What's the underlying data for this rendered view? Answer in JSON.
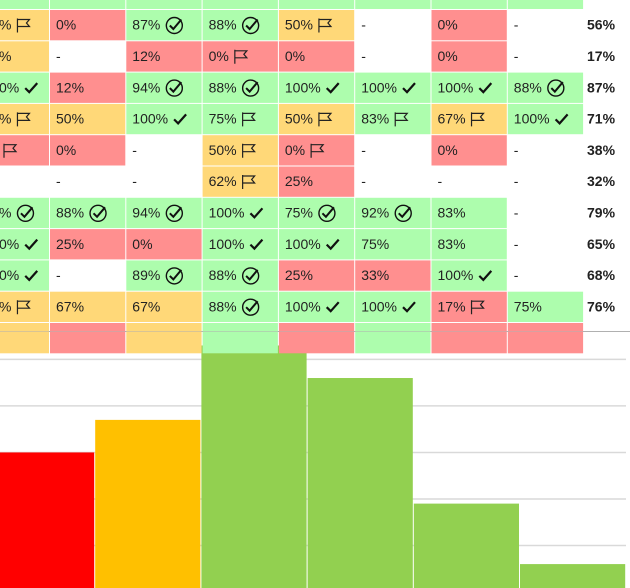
{
  "table": {
    "rows": [
      {
        "cells": [
          {
            "fill": "#adfdad"
          },
          {
            "fill": "#adfdad"
          },
          {
            "fill": "#adfdad"
          },
          {
            "fill": "#adfdad"
          },
          {
            "fill": "#adfdad"
          },
          {
            "fill": "#adfdad"
          },
          {
            "fill": "#adfdad"
          },
          {
            "fill": "#adfdad"
          }
        ]
      },
      {
        "cells": [
          {
            "fill": "#ffd878",
            "text": "%",
            "icon": "flag"
          },
          {
            "fill": "#ff8f8f",
            "text": "0%"
          },
          {
            "fill": "#adfdad",
            "text": "87%",
            "icon": "check-circle"
          },
          {
            "fill": "#adfdad",
            "text": "88%",
            "icon": "check-circle"
          },
          {
            "fill": "#ffd878",
            "text": "50%",
            "icon": "flag"
          },
          {
            "fill": "#ffffff",
            "text": "-"
          },
          {
            "fill": "#ff8f8f",
            "text": "0%"
          },
          {
            "fill": "#ffffff",
            "text": "-"
          }
        ],
        "total": "56%"
      },
      {
        "cells": [
          {
            "fill": "#ffd878",
            "text": "%"
          },
          {
            "fill": "#ffffff",
            "text": "-"
          },
          {
            "fill": "#ff8f8f",
            "text": "12%"
          },
          {
            "fill": "#ff8f8f",
            "text": "0%",
            "icon": "flag"
          },
          {
            "fill": "#ff8f8f",
            "text": "0%"
          },
          {
            "fill": "#ffffff",
            "text": "-"
          },
          {
            "fill": "#ff8f8f",
            "text": "0%"
          },
          {
            "fill": "#ffffff",
            "text": "-"
          }
        ],
        "total": "17%"
      },
      {
        "cells": [
          {
            "fill": "#adfdad",
            "text": "0%",
            "icon": "check"
          },
          {
            "fill": "#ff8f8f",
            "text": "12%"
          },
          {
            "fill": "#adfdad",
            "text": "94%",
            "icon": "check-circle"
          },
          {
            "fill": "#adfdad",
            "text": "88%",
            "icon": "check-circle"
          },
          {
            "fill": "#adfdad",
            "text": "100%",
            "icon": "check"
          },
          {
            "fill": "#adfdad",
            "text": "100%",
            "icon": "check"
          },
          {
            "fill": "#adfdad",
            "text": "100%",
            "icon": "check"
          },
          {
            "fill": "#adfdad",
            "text": "88%",
            "icon": "check-circle"
          }
        ],
        "total": "87%"
      },
      {
        "cells": [
          {
            "fill": "#ffd878",
            "text": "%",
            "icon": "flag"
          },
          {
            "fill": "#ffd878",
            "text": "50%"
          },
          {
            "fill": "#adfdad",
            "text": "100%",
            "icon": "check"
          },
          {
            "fill": "#adfdad",
            "text": "75%",
            "icon": "flag"
          },
          {
            "fill": "#ffd878",
            "text": "50%",
            "icon": "flag"
          },
          {
            "fill": "#adfdad",
            "text": "83%",
            "icon": "flag"
          },
          {
            "fill": "#ffd878",
            "text": "67%",
            "icon": "flag"
          },
          {
            "fill": "#adfdad",
            "text": "100%",
            "icon": "check"
          }
        ],
        "total": "71%"
      },
      {
        "cells": [
          {
            "fill": "#ff8f8f",
            "icon": "flag"
          },
          {
            "fill": "#ff8f8f",
            "text": "0%"
          },
          {
            "fill": "#ffffff",
            "text": "-"
          },
          {
            "fill": "#ffd878",
            "text": "50%",
            "icon": "flag"
          },
          {
            "fill": "#ff8f8f",
            "text": "0%",
            "icon": "flag"
          },
          {
            "fill": "#ffffff",
            "text": "-"
          },
          {
            "fill": "#ff8f8f",
            "text": "0%"
          },
          {
            "fill": "#ffffff",
            "text": "-"
          }
        ],
        "total": "38%"
      },
      {
        "cells": [
          {
            "fill": "#ffffff"
          },
          {
            "fill": "#ffffff",
            "text": "-"
          },
          {
            "fill": "#ffffff",
            "text": "-"
          },
          {
            "fill": "#ffd878",
            "text": "62%",
            "icon": "flag"
          },
          {
            "fill": "#ff8f8f",
            "text": "25%"
          },
          {
            "fill": "#ffffff",
            "text": "-"
          },
          {
            "fill": "#ffffff",
            "text": "-"
          },
          {
            "fill": "#ffffff",
            "text": "-"
          }
        ],
        "total": "32%"
      },
      {
        "cells": [
          {
            "fill": "#adfdad",
            "text": "%",
            "icon": "check-circle"
          },
          {
            "fill": "#adfdad",
            "text": "88%",
            "icon": "check-circle"
          },
          {
            "fill": "#adfdad",
            "text": "94%",
            "icon": "check-circle"
          },
          {
            "fill": "#adfdad",
            "text": "100%",
            "icon": "check"
          },
          {
            "fill": "#adfdad",
            "text": "75%",
            "icon": "check-circle"
          },
          {
            "fill": "#adfdad",
            "text": "92%",
            "icon": "check-circle"
          },
          {
            "fill": "#adfdad",
            "text": "83%"
          },
          {
            "fill": "#ffffff",
            "text": "-"
          }
        ],
        "total": "79%"
      },
      {
        "cells": [
          {
            "fill": "#adfdad",
            "text": "0%",
            "icon": "check"
          },
          {
            "fill": "#ff8f8f",
            "text": "25%"
          },
          {
            "fill": "#ff8f8f",
            "text": "0%"
          },
          {
            "fill": "#adfdad",
            "text": "100%",
            "icon": "check"
          },
          {
            "fill": "#adfdad",
            "text": "100%",
            "icon": "check"
          },
          {
            "fill": "#adfdad",
            "text": "75%"
          },
          {
            "fill": "#adfdad",
            "text": "83%"
          },
          {
            "fill": "#ffffff",
            "text": "-"
          }
        ],
        "total": "65%"
      },
      {
        "cells": [
          {
            "fill": "#adfdad",
            "text": "0%",
            "icon": "check"
          },
          {
            "fill": "#ffffff",
            "text": "-"
          },
          {
            "fill": "#adfdad",
            "text": "89%",
            "icon": "check-circle"
          },
          {
            "fill": "#adfdad",
            "text": "88%",
            "icon": "check-circle"
          },
          {
            "fill": "#ff8f8f",
            "text": "25%"
          },
          {
            "fill": "#ff8f8f",
            "text": "33%"
          },
          {
            "fill": "#adfdad",
            "text": "100%",
            "icon": "check"
          },
          {
            "fill": "#ffffff",
            "text": "-"
          }
        ],
        "total": "68%"
      },
      {
        "cells": [
          {
            "fill": "#ffd878",
            "text": "%",
            "icon": "flag"
          },
          {
            "fill": "#ffd878",
            "text": "67%"
          },
          {
            "fill": "#ffd878",
            "text": "67%"
          },
          {
            "fill": "#adfdad",
            "text": "88%",
            "icon": "check-circle"
          },
          {
            "fill": "#adfdad",
            "text": "100%",
            "icon": "check"
          },
          {
            "fill": "#adfdad",
            "text": "100%",
            "icon": "check"
          },
          {
            "fill": "#ff8f8f",
            "text": "17%",
            "icon": "flag"
          },
          {
            "fill": "#adfdad",
            "text": "75%"
          }
        ],
        "total": "76%"
      },
      {
        "cells": [
          {
            "fill": "#ffd878"
          },
          {
            "fill": "#ff8f8f"
          },
          {
            "fill": "#ffd878"
          },
          {
            "fill": "#adfdad"
          },
          {
            "fill": "#ff8f8f"
          },
          {
            "fill": "#adfdad"
          },
          {
            "fill": "#ff8f8f"
          },
          {
            "fill": "#ff8f8f"
          }
        ]
      }
    ]
  },
  "chart_data": {
    "type": "bar",
    "values": [
      3.0,
      3.7,
      5.3,
      4.6,
      1.9,
      0.6
    ],
    "colors": [
      "#ff0000",
      "#ffc000",
      "#92d050",
      "#92d050",
      "#92d050",
      "#92d050"
    ],
    "ylim": [
      0,
      5.6
    ],
    "yticks": [
      1,
      2,
      3,
      4,
      5
    ],
    "grid": true
  }
}
